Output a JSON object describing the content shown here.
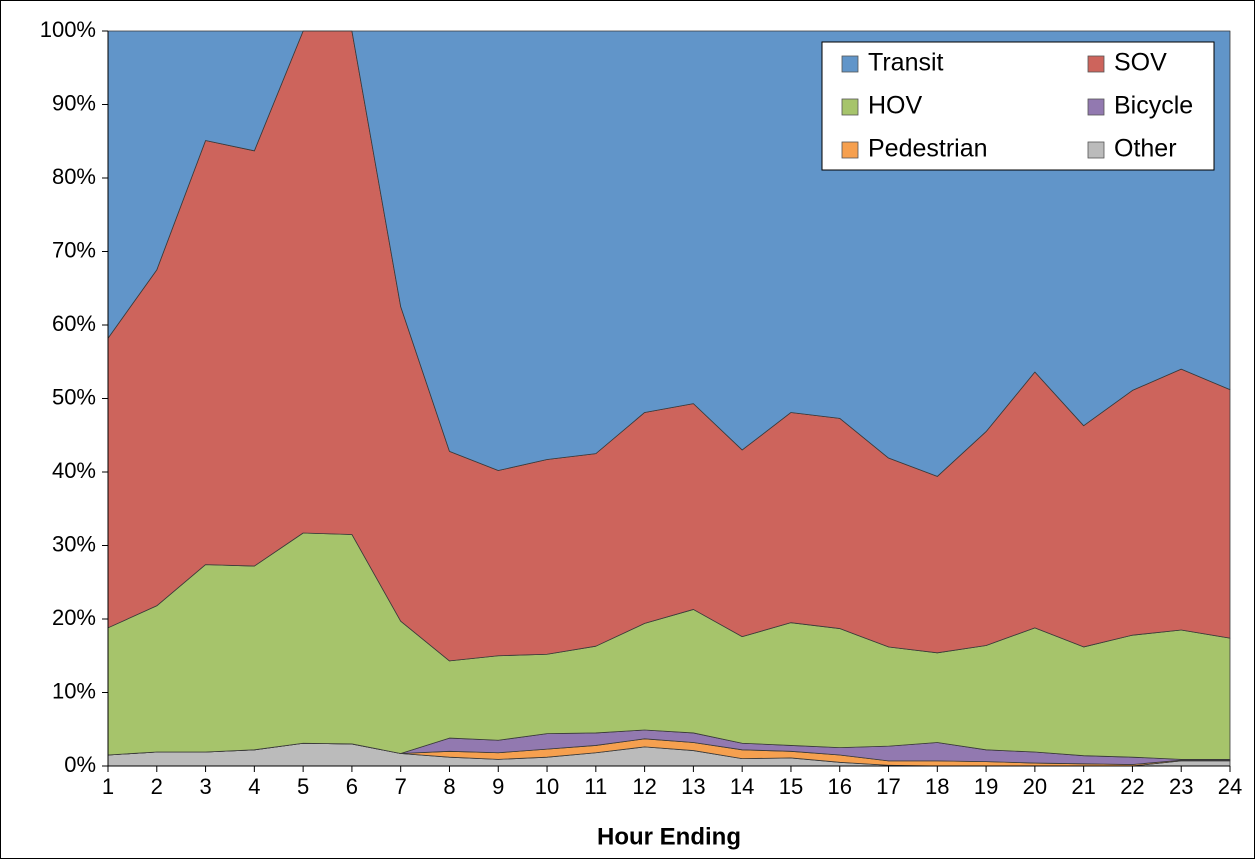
{
  "chart_data": {
    "type": "stacked-area",
    "x_label": "Hour Ending",
    "categories": [
      "1",
      "2",
      "3",
      "4",
      "5",
      "6",
      "7",
      "8",
      "9",
      "10",
      "11",
      "12",
      "13",
      "14",
      "15",
      "16",
      "17",
      "18",
      "19",
      "20",
      "21",
      "22",
      "23",
      "24"
    ],
    "series": [
      {
        "name": "Transit",
        "color": "#6195c9",
        "values": [
          41.8,
          32.5,
          14.9,
          16.3,
          0,
          0,
          37.5,
          57.2,
          59.8,
          58.3,
          57.5,
          51.9,
          50.7,
          57.0,
          51.9,
          52.7,
          58.1,
          60.6,
          54.5,
          46.4,
          53.7,
          48.9,
          46.0,
          48.8
        ]
      },
      {
        "name": "SOV",
        "color": "#cd645c",
        "values": [
          39.4,
          45.7,
          57.7,
          56.5,
          68.3,
          68.5,
          42.8,
          28.5,
          25.2,
          26.5,
          26.2,
          28.7,
          28.0,
          25.4,
          28.6,
          28.6,
          25.7,
          24.0,
          29.1,
          34.8,
          30.1,
          33.3,
          35.5,
          33.8
        ]
      },
      {
        "name": "HOV",
        "color": "#a6c46b",
        "values": [
          17.3,
          19.9,
          25.5,
          25.0,
          28.6,
          28.5,
          18.0,
          10.5,
          11.5,
          10.8,
          11.8,
          14.5,
          16.8,
          14.5,
          16.7,
          16.2,
          13.5,
          12.2,
          14.2,
          16.9,
          14.8,
          16.6,
          17.6,
          16.5
        ]
      },
      {
        "name": "Bicycle",
        "color": "#9279b0",
        "values": [
          0,
          0,
          0,
          0,
          0,
          0,
          0,
          1.8,
          1.7,
          2.1,
          1.7,
          1.2,
          1.3,
          0.9,
          0.8,
          1.0,
          2.0,
          2.5,
          1.6,
          1.5,
          1.1,
          1.0,
          0.1,
          0.1
        ]
      },
      {
        "name": "Pedestrian",
        "color": "#f6a04f",
        "values": [
          0,
          0,
          0,
          0,
          0,
          0,
          0,
          0.8,
          0.9,
          1.1,
          1.0,
          1.1,
          1.1,
          1.2,
          0.9,
          1.0,
          0.6,
          0.7,
          0.6,
          0.4,
          0.3,
          0.2,
          0.1,
          0.1
        ]
      },
      {
        "name": "Other",
        "color": "#bbbbbb",
        "values": [
          1.5,
          1.9,
          1.9,
          2.2,
          3.1,
          3.0,
          1.7,
          1.2,
          0.9,
          1.2,
          1.8,
          2.6,
          2.1,
          1.0,
          1.1,
          0.5,
          0.1,
          0,
          0,
          0,
          0,
          0,
          0.7,
          0.7
        ]
      }
    ],
    "ylim": [
      0,
      100
    ],
    "yticks": [
      {
        "value": 0,
        "label": "0%"
      },
      {
        "value": 10,
        "label": "10%"
      },
      {
        "value": 20,
        "label": "20%"
      },
      {
        "value": 30,
        "label": "30%"
      },
      {
        "value": 40,
        "label": "40%"
      },
      {
        "value": 50,
        "label": "50%"
      },
      {
        "value": 60,
        "label": "60%"
      },
      {
        "value": 70,
        "label": "70%"
      },
      {
        "value": 80,
        "label": "80%"
      },
      {
        "value": 90,
        "label": "90%"
      },
      {
        "value": 100,
        "label": "100%"
      }
    ],
    "legend": "top-right"
  }
}
